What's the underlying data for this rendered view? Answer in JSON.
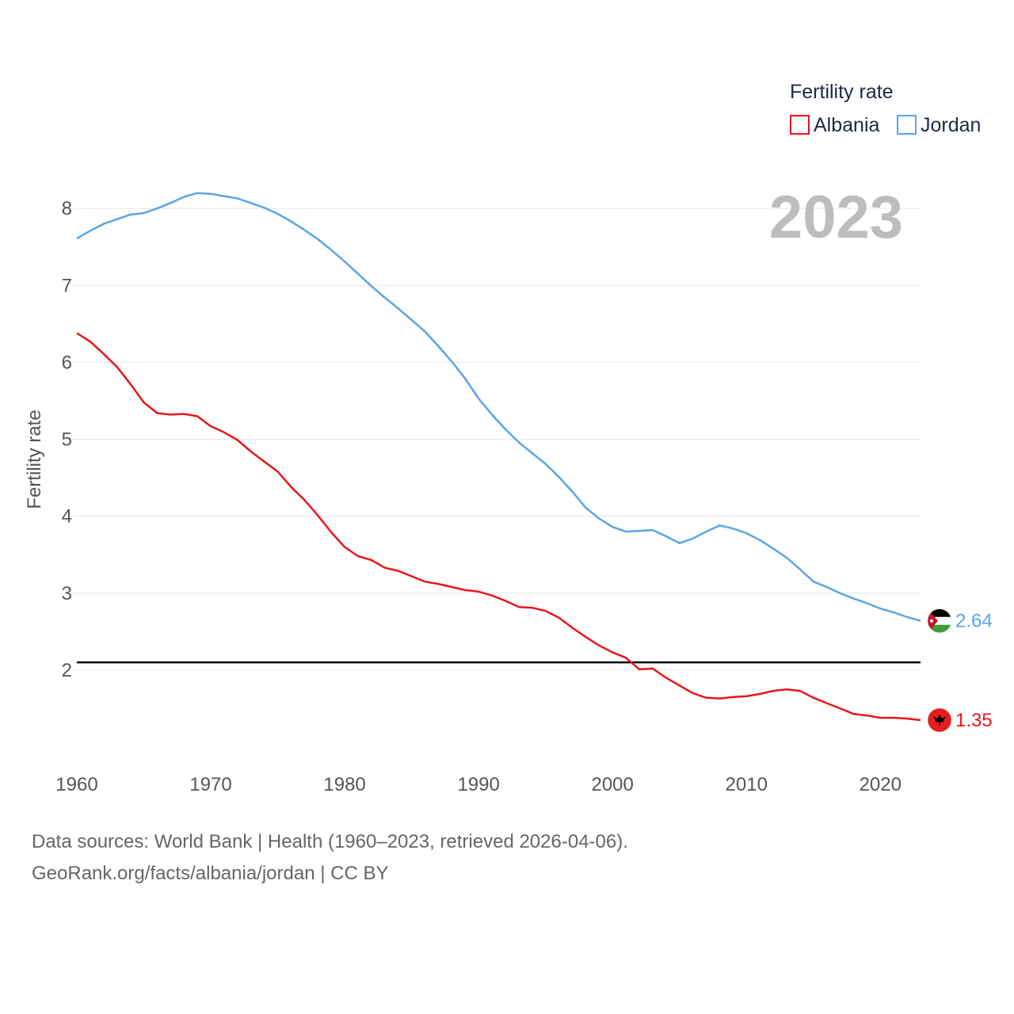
{
  "chart_data": {
    "type": "line",
    "title": "Fertility rate",
    "ylabel": "Fertility rate",
    "xlabel": "",
    "year_label": "2023",
    "xlim": [
      1960,
      2023
    ],
    "ylim": [
      1.0,
      8.3
    ],
    "x_ticks": [
      1960,
      1970,
      1980,
      1990,
      2000,
      2010,
      2020
    ],
    "y_ticks": [
      2,
      3,
      4,
      5,
      6,
      7,
      8
    ],
    "reference_line": 2.1,
    "x": [
      1960,
      1961,
      1962,
      1963,
      1964,
      1965,
      1966,
      1967,
      1968,
      1969,
      1970,
      1971,
      1972,
      1973,
      1974,
      1975,
      1976,
      1977,
      1978,
      1979,
      1980,
      1981,
      1982,
      1983,
      1984,
      1985,
      1986,
      1987,
      1988,
      1989,
      1990,
      1991,
      1992,
      1993,
      1994,
      1995,
      1996,
      1997,
      1998,
      1999,
      2000,
      2001,
      2002,
      2003,
      2004,
      2005,
      2006,
      2007,
      2008,
      2009,
      2010,
      2011,
      2012,
      2013,
      2014,
      2015,
      2016,
      2017,
      2018,
      2019,
      2020,
      2021,
      2022,
      2023
    ],
    "series": [
      {
        "name": "Albania",
        "color": "#e8161b",
        "end_label": "1.35",
        "values": [
          6.38,
          6.27,
          6.11,
          5.94,
          5.72,
          5.48,
          5.34,
          5.32,
          5.33,
          5.3,
          5.17,
          5.09,
          4.99,
          4.84,
          4.71,
          4.58,
          4.38,
          4.21,
          4.01,
          3.79,
          3.6,
          3.48,
          3.43,
          3.33,
          3.29,
          3.22,
          3.15,
          3.12,
          3.08,
          3.04,
          3.02,
          2.97,
          2.9,
          2.82,
          2.81,
          2.77,
          2.68,
          2.55,
          2.43,
          2.32,
          2.23,
          2.16,
          2.01,
          2.02,
          1.9,
          1.8,
          1.7,
          1.64,
          1.63,
          1.65,
          1.66,
          1.69,
          1.73,
          1.75,
          1.73,
          1.64,
          1.57,
          1.5,
          1.43,
          1.41,
          1.38,
          1.38,
          1.37,
          1.35
        ]
      },
      {
        "name": "Jordan",
        "color": "#5ba5e6",
        "end_label": "2.64",
        "values": [
          7.61,
          7.71,
          7.8,
          7.86,
          7.92,
          7.94,
          8.0,
          8.07,
          8.15,
          8.2,
          8.19,
          8.16,
          8.13,
          8.07,
          8.01,
          7.93,
          7.83,
          7.72,
          7.6,
          7.46,
          7.31,
          7.15,
          6.99,
          6.84,
          6.7,
          6.55,
          6.4,
          6.21,
          6.01,
          5.79,
          5.53,
          5.32,
          5.13,
          4.96,
          4.82,
          4.68,
          4.51,
          4.32,
          4.11,
          3.97,
          3.86,
          3.8,
          3.81,
          3.82,
          3.74,
          3.65,
          3.71,
          3.8,
          3.88,
          3.84,
          3.78,
          3.69,
          3.58,
          3.46,
          3.31,
          3.15,
          3.08,
          3.0,
          2.93,
          2.87,
          2.8,
          2.75,
          2.69,
          2.64
        ]
      }
    ]
  },
  "footer": {
    "source_line": "Data sources: World Bank | Health (1960–2023, retrieved 2026-04-06).",
    "url_line": "GeoRank.org/facts/albania/jordan | CC BY"
  },
  "colors": {
    "grid": "#e6e6e6",
    "reference": "#000000",
    "albania": "#e8161b",
    "jordan": "#5ba5e6"
  },
  "icons": {
    "albania_marker": "albania-flag-icon",
    "jordan_marker": "jordan-flag-icon"
  }
}
